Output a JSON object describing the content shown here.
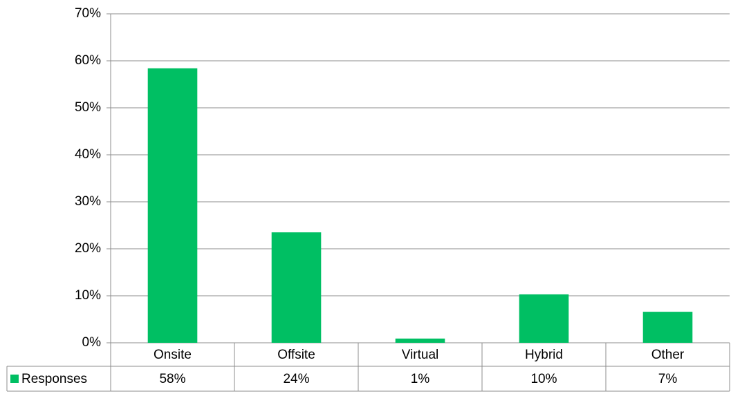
{
  "chart_data": {
    "type": "bar",
    "categories": [
      "Onsite",
      "Offsite",
      "Virtual",
      "Hybrid",
      "Other"
    ],
    "series": [
      {
        "name": "Responses",
        "color": "#00bf63",
        "values": [
          58.4,
          23.5,
          0.9,
          10.3,
          6.6
        ],
        "value_labels": [
          "58%",
          "24%",
          "1%",
          "10%",
          "7%"
        ]
      }
    ],
    "ylim": [
      0,
      70
    ],
    "yticks": [
      {
        "value": 0,
        "label": "0%"
      },
      {
        "value": 10,
        "label": "10%"
      },
      {
        "value": 20,
        "label": "20%"
      },
      {
        "value": 30,
        "label": "30%"
      },
      {
        "value": 40,
        "label": "40%"
      },
      {
        "value": 50,
        "label": "50%"
      },
      {
        "value": 60,
        "label": "60%"
      },
      {
        "value": 70,
        "label": "70%"
      }
    ],
    "grid": true
  }
}
